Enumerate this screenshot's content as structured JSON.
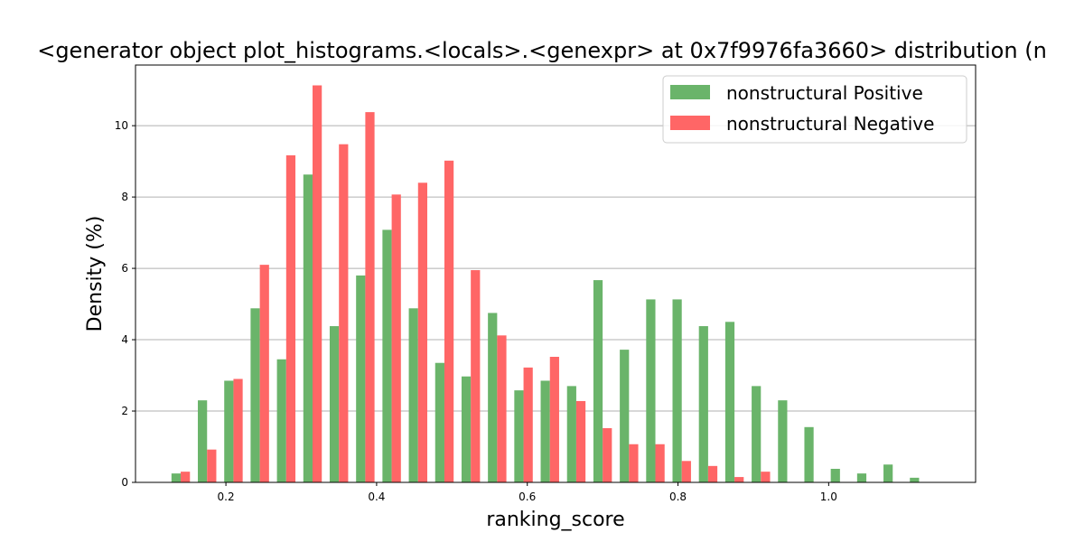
{
  "chart_data": {
    "type": "bar",
    "title": "<generator object plot_histograms.<locals>.<genexpr> at 0x7f9976fa3660> distribution (n",
    "xlabel": "ranking_score",
    "ylabel": "Density (%)",
    "xlim": [
      0.08,
      1.195
    ],
    "ylim": [
      0,
      11.7
    ],
    "xticks": [
      0.2,
      0.4,
      0.6,
      0.8,
      1.0
    ],
    "xtick_labels": [
      "0.2",
      "0.4",
      "0.6",
      "0.8",
      "1.0"
    ],
    "yticks": [
      0,
      2,
      4,
      6,
      8,
      10
    ],
    "ytick_labels": [
      "0",
      "2",
      "4",
      "6",
      "8",
      "10"
    ],
    "grid": "horizontal",
    "legend": "top-right",
    "bin_centers": [
      0.14,
      0.175,
      0.21,
      0.245,
      0.28,
      0.315,
      0.35,
      0.385,
      0.42,
      0.455,
      0.49,
      0.525,
      0.56,
      0.595,
      0.63,
      0.665,
      0.7,
      0.735,
      0.77,
      0.805,
      0.84,
      0.875,
      0.91,
      0.945,
      0.98,
      1.015,
      1.05,
      1.085,
      1.12
    ],
    "series": [
      {
        "name": "nonstructural Positive",
        "color": "#6ab46a",
        "values": [
          0.25,
          2.3,
          2.85,
          4.88,
          3.45,
          8.63,
          4.38,
          5.8,
          7.08,
          4.88,
          3.35,
          2.97,
          4.75,
          2.58,
          2.85,
          2.7,
          5.67,
          3.72,
          5.13,
          5.13,
          4.38,
          4.5,
          2.7,
          2.3,
          1.55,
          0.38,
          0.25,
          0.5,
          0.13
        ]
      },
      {
        "name": "nonstructural Negative",
        "color": "#ff6666",
        "values": [
          0.3,
          0.92,
          2.9,
          6.1,
          9.17,
          11.13,
          9.48,
          10.38,
          8.07,
          8.4,
          9.02,
          5.95,
          4.12,
          3.22,
          3.52,
          2.28,
          1.52,
          1.07,
          1.07,
          0.6,
          0.46,
          0.15,
          0.3,
          0,
          0,
          0,
          0,
          0,
          0
        ]
      }
    ]
  }
}
